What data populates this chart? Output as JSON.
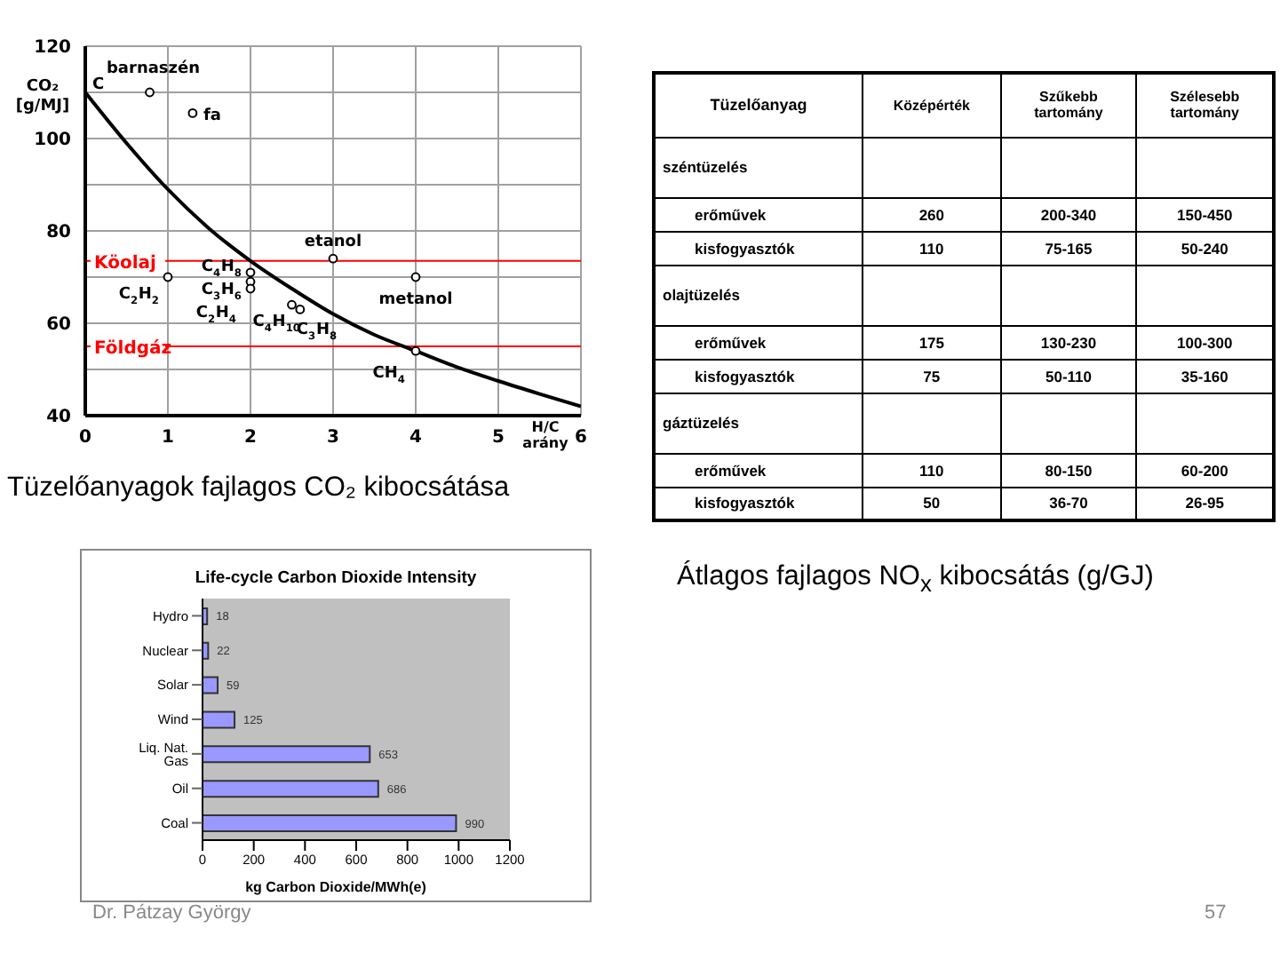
{
  "chart_data": [
    {
      "type": "line",
      "title": "Tüzelőanyagok fajlagos CO₂ kibocsátása",
      "xlabel": "H/C arány",
      "ylabel": "CO₂ [g/MJ]",
      "xlim": [
        0,
        6
      ],
      "xticks": [
        0,
        1,
        2,
        3,
        4,
        5,
        6
      ],
      "ylim": [
        40,
        120
      ],
      "yticks": [
        40,
        {
          "value": 50,
          "label": null
        },
        60,
        {
          "value": 70,
          "label": null
        },
        80,
        {
          "value": 90,
          "label": null
        },
        100,
        {
          "value": 110,
          "label": null
        },
        120
      ],
      "grid": true,
      "marker": "circle",
      "series": [
        {
          "type": "line",
          "marker": "none",
          "color": "#000000",
          "x": [
            0,
            0.5,
            1,
            1.5,
            2,
            2.5,
            3,
            3.5,
            4,
            4.5,
            5,
            5.5,
            6
          ],
          "values": [
            110,
            99,
            89,
            80.5,
            73.5,
            67.5,
            62,
            57.5,
            54,
            50.5,
            47.5,
            44.7,
            42
          ]
        },
        {
          "type": "scatter",
          "color": "#000000",
          "x": [
            0.78,
            1.3,
            3,
            4,
            1,
            2,
            2,
            2,
            2.5,
            2.6,
            4
          ],
          "values": [
            110,
            105.5,
            74,
            70,
            70,
            71,
            69,
            67.5,
            64,
            63,
            54
          ]
        }
      ],
      "ref_lines": [
        {
          "axis": "y",
          "value": 73.5,
          "label": "Köolaj",
          "color": "#ff0000"
        },
        {
          "axis": "y",
          "value": 55,
          "label": "Földgáz",
          "color": "#ff0000"
        }
      ],
      "annotations": [
        {
          "text": "C",
          "x": 0,
          "y": 110
        },
        {
          "text": "barnaszén",
          "x": 0.78,
          "y": 110
        },
        {
          "text": "fa",
          "x": 1.3,
          "y": 105.5
        },
        {
          "text": "etanol",
          "x": 3,
          "y": 74
        },
        {
          "text": "metanol",
          "x": 4,
          "y": 70
        },
        {
          "text": "C$_{2}$H$_{2}$",
          "x": 1,
          "y": 70
        },
        {
          "text": "C$_{4}$H$_{8}$",
          "x": 2,
          "y": 71
        },
        {
          "text": "C$_{3}$H$_{6}$",
          "x": 2,
          "y": 69
        },
        {
          "text": "C$_{2}$H$_{4}$",
          "x": 2,
          "y": 67.5
        },
        {
          "text": "C$_{4}$H$_{10}$",
          "x": 2.5,
          "y": 64
        },
        {
          "text": "C$_{3}$H$_{8}$",
          "x": 2.6,
          "y": 63
        },
        {
          "text": "CH$_{4}$",
          "x": 4,
          "y": 54
        }
      ]
    },
    {
      "type": "other",
      "title": "Átlagos fajlagos NO$_{x}$ kibocsátás (g/GJ)",
      "categories": [
        "Tüzelőanyag",
        "Középérték",
        "Szűkebb tartomány",
        "Szélesebb tartomány"
      ],
      "y_categories": [
        "széntüzelés",
        "erőművek",
        "kisfogyasztók",
        "olajtüzelés",
        "erőművek",
        "kisfogyasztók",
        "gáztüzelés",
        "erőművek",
        "kisfogyasztók"
      ],
      "cell_labels": [
        [
          null,
          null,
          null
        ],
        [
          "260",
          "200-340",
          "150-450"
        ],
        [
          "110",
          "75-165",
          "50-240"
        ],
        [
          null,
          null,
          null
        ],
        [
          "175",
          "130-230",
          "100-300"
        ],
        [
          "75",
          "50-110",
          "35-160"
        ],
        [
          null,
          null,
          null
        ],
        [
          "110",
          "80-150",
          "60-200"
        ],
        [
          "50",
          "36-70",
          "26-95"
        ]
      ]
    },
    {
      "type": "bar",
      "orientation": "horizontal",
      "title": "Life-cycle Carbon Dioxide Intensity",
      "xlabel": "kg Carbon Dioxide/MWh(e)",
      "categories": [
        "Hydro",
        "Nuclear",
        "Solar",
        "Wind",
        "Liq. Nat. Gas",
        "Oil",
        "Coal"
      ],
      "values": [
        18,
        22,
        59,
        125,
        653,
        686,
        990
      ],
      "color": "#9999ff",
      "xlim": [
        0,
        1200
      ],
      "xticks": [
        0,
        200,
        400,
        600,
        800,
        1000,
        1200
      ],
      "data_labels": true,
      "annotations": [
        "Dr. Pátzay György",
        "57"
      ]
    }
  ]
}
